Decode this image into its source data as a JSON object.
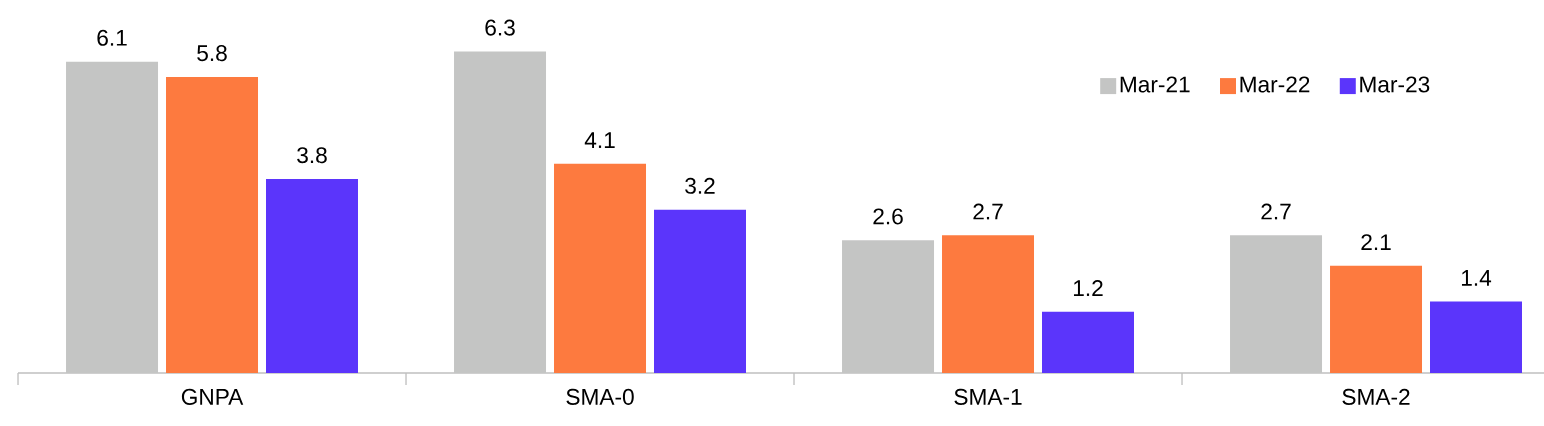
{
  "chart_data": {
    "type": "bar",
    "categories": [
      "GNPA",
      "SMA-0",
      "SMA-1",
      "SMA-2"
    ],
    "series": [
      {
        "name": "Mar-21",
        "color": "#c4c5c4",
        "values": [
          6.1,
          6.3,
          2.6,
          2.7
        ]
      },
      {
        "name": "Mar-22",
        "color": "#fd7a3f",
        "values": [
          5.8,
          4.1,
          2.7,
          2.1
        ]
      },
      {
        "name": "Mar-23",
        "color": "#5b35fb",
        "values": [
          3.8,
          3.2,
          1.2,
          1.4
        ]
      }
    ],
    "data_labels": true,
    "legend": "top right"
  }
}
